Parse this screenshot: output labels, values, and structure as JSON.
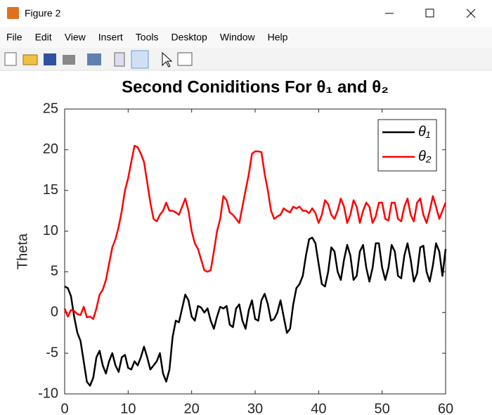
{
  "window_title": "Figure 2",
  "menu": [
    "File",
    "Edit",
    "View",
    "Insert",
    "Tools",
    "Desktop",
    "Window",
    "Help"
  ],
  "chart_data": {
    "type": "line",
    "title": "Second Coniditions For θ₁ and θ₂",
    "y_label": "Theta",
    "x": [
      0,
      0.5,
      1,
      1.5,
      2,
      2.5,
      3,
      3.5,
      4,
      4.5,
      5,
      5.5,
      6,
      6.5,
      7,
      7.5,
      8,
      8.5,
      9,
      9.5,
      10,
      10.5,
      11,
      11.5,
      12,
      12.5,
      13,
      13.5,
      14,
      14.5,
      15,
      15.5,
      16,
      16.5,
      17,
      17.5,
      18,
      18.5,
      19,
      19.5,
      20,
      20.5,
      21,
      21.5,
      22,
      22.5,
      23,
      23.5,
      24,
      24.5,
      25,
      25.5,
      26,
      26.5,
      27,
      27.5,
      28,
      28.5,
      29,
      29.5,
      30,
      30.5,
      31,
      31.5,
      32,
      32.5,
      33,
      33.5,
      34,
      34.5,
      35,
      35.5,
      36,
      36.5,
      37,
      37.5,
      38,
      38.5,
      39,
      39.5,
      40,
      40.5,
      41,
      41.5,
      42,
      42.5,
      43,
      43.5,
      44,
      44.5,
      45,
      45.5,
      46,
      46.5,
      47,
      47.5,
      48,
      48.5,
      49,
      49.5,
      50,
      50.5,
      51,
      51.5,
      52,
      52.5,
      53,
      53.5,
      54,
      54.5,
      55,
      55.5,
      56,
      56.5,
      57,
      57.5,
      58,
      58.5,
      59,
      59.5,
      60
    ],
    "series": [
      {
        "name": "θ₁",
        "color": "#000000",
        "values": [
          3.2,
          3.0,
          2.0,
          -0.5,
          -2.5,
          -3.5,
          -6,
          -8.5,
          -9,
          -8,
          -5.5,
          -4.7,
          -6.5,
          -7.5,
          -6,
          -5,
          -6.5,
          -7.3,
          -5.5,
          -5.2,
          -6.8,
          -7,
          -6,
          -6.5,
          -5.5,
          -4.2,
          -5.5,
          -7,
          -6.5,
          -6,
          -5,
          -7.5,
          -8.5,
          -7,
          -3,
          -1,
          -1.2,
          0.5,
          2.2,
          1.5,
          -0.5,
          -1,
          0.8,
          0.6,
          0,
          0.5,
          -1,
          -2,
          -0.5,
          0.7,
          0.5,
          0.8,
          -1.5,
          -1.8,
          0.5,
          1,
          -1,
          -2,
          0.3,
          1.5,
          -0.8,
          -1,
          1.5,
          2.3,
          1,
          -1,
          -0.8,
          0,
          1.5,
          -0.5,
          -2.5,
          -2,
          1,
          3,
          3.5,
          4.5,
          7,
          9,
          9.2,
          8.5,
          6,
          3.5,
          3.2,
          5,
          8,
          7.5,
          5,
          4,
          6.5,
          8.3,
          7,
          4,
          4.5,
          7.5,
          8.3,
          5.5,
          3.8,
          5.5,
          8.5,
          8.5,
          5.5,
          4,
          5.5,
          8.3,
          7.5,
          4.5,
          4.2,
          7,
          8.5,
          6.5,
          3.8,
          4.8,
          8,
          8.2,
          5,
          3.8,
          5.8,
          8.5,
          7.5,
          4.5,
          7.8
        ]
      },
      {
        "name": "θ₂",
        "color": "#ff0000",
        "values": [
          0.5,
          -0.5,
          0.3,
          0.2,
          -0.2,
          -0.3,
          0.7,
          -0.6,
          -0.5,
          -0.8,
          0.5,
          2.2,
          2.8,
          4,
          6,
          8,
          9,
          10.5,
          12.5,
          15,
          16.5,
          18.5,
          20.5,
          20.3,
          19.5,
          18.5,
          16,
          13.5,
          11.5,
          11.2,
          12,
          12.5,
          13.5,
          12.5,
          12.5,
          12.3,
          12,
          13,
          14,
          12.5,
          10,
          8.5,
          7.8,
          6.5,
          5.2,
          5,
          5.2,
          7.5,
          10,
          11.5,
          14.3,
          13.8,
          12.3,
          12,
          11.5,
          11,
          13,
          15,
          17,
          19.5,
          19.8,
          19.8,
          19.7,
          17,
          15,
          12.5,
          11.5,
          11.8,
          12,
          12.8,
          12.5,
          12.3,
          13,
          12.8,
          13,
          12.5,
          12.5,
          12.2,
          12.8,
          12.2,
          11,
          12,
          13.8,
          13.3,
          12,
          11.5,
          12.5,
          14,
          13,
          11,
          12,
          13.8,
          13,
          11,
          12.5,
          13.5,
          13,
          11,
          11.8,
          13.5,
          13.5,
          11.5,
          11.3,
          13.5,
          13.5,
          11.5,
          11.2,
          13,
          14,
          12,
          11.2,
          13.5,
          14,
          12,
          11,
          12.5,
          14.3,
          13,
          11.5,
          12.5,
          13.5
        ]
      }
    ],
    "xlim": [
      0,
      60
    ],
    "xticks": [
      0,
      10,
      20,
      30,
      40,
      50,
      60
    ],
    "ylim": [
      -10,
      25
    ],
    "yticks": [
      -10,
      -5,
      0,
      5,
      10,
      15,
      20,
      25
    ],
    "grid": false,
    "legend": "northeast"
  }
}
